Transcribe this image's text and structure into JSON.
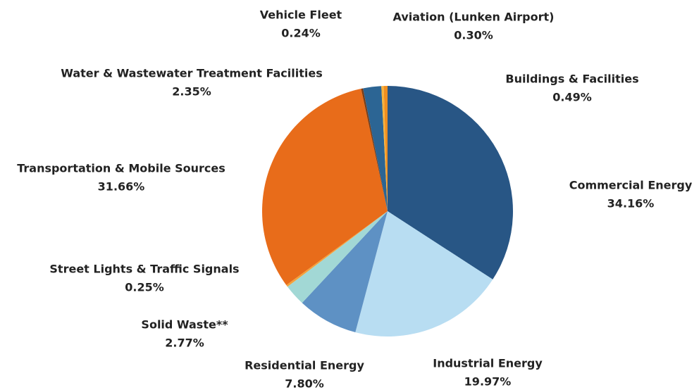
{
  "chart_data": {
    "type": "pie",
    "categories": [
      "Commercial Energy",
      "Industrial Energy",
      "Residential Energy",
      "Solid Waste**",
      "Street Lights & Traffic Signals",
      "Transportation & Mobile Sources",
      "Vehicle Fleet",
      "Water & Wastewater Treatment Facilities",
      "Aviation (Lunken Airport)",
      "Buildings & Facilities"
    ],
    "values": [
      34.16,
      19.97,
      7.8,
      2.77,
      0.25,
      31.66,
      0.24,
      2.35,
      0.3,
      0.49
    ],
    "value_labels": [
      "34.16%",
      "19.97%",
      "7.80%",
      "2.77%",
      "0.25%",
      "31.66%",
      "0.24%",
      "2.35%",
      "0.30%",
      "0.49%"
    ],
    "colors": [
      "#285685",
      "#b8ddf2",
      "#5e91c4",
      "#a2d8d5",
      "#f4a13a",
      "#e86c1a",
      "#7a3d16",
      "#2c6594",
      "#f7b23c",
      "#ef8e1f"
    ]
  }
}
